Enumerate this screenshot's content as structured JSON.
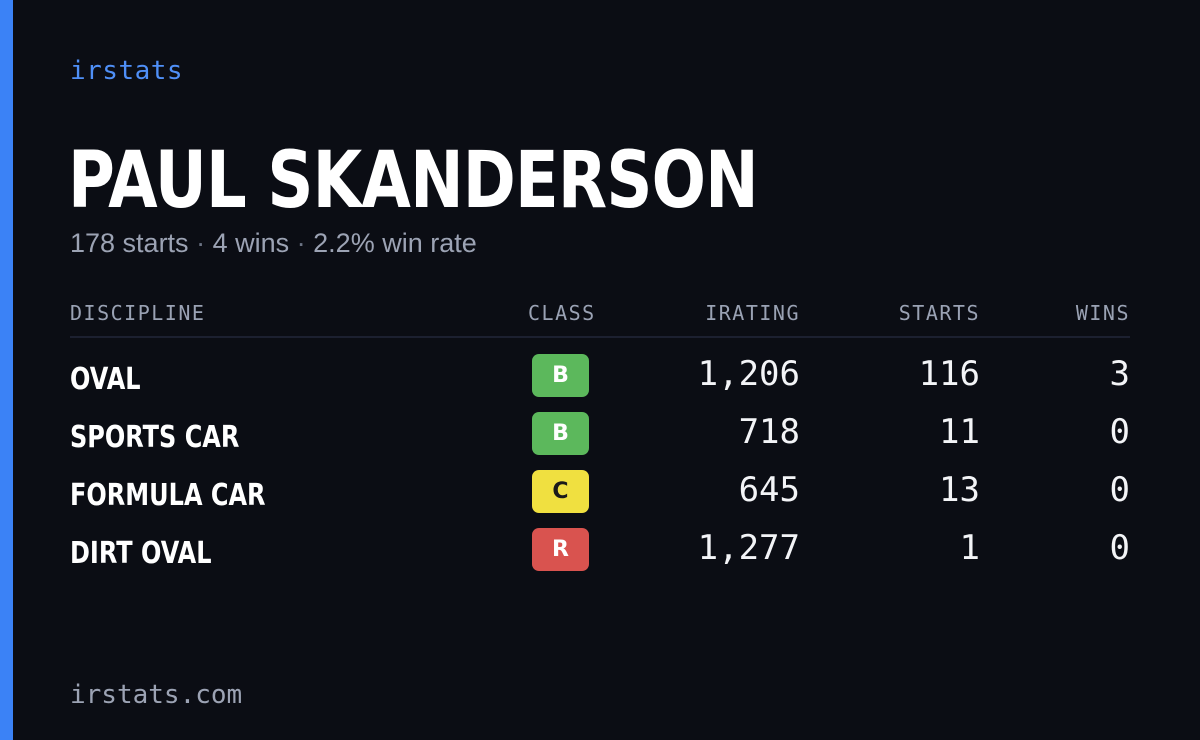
{
  "brand": "irstats",
  "player": {
    "name": "PAUL SKANDERSON",
    "starts_text": "178 starts",
    "wins_text": "4 wins",
    "win_rate_text": "2.2% win rate",
    "separator": "·"
  },
  "table": {
    "headers": {
      "discipline": "DISCIPLINE",
      "class": "CLASS",
      "irating": "IRATING",
      "starts": "STARTS",
      "wins": "WINS"
    },
    "rows": [
      {
        "discipline": "OVAL",
        "class": "B",
        "class_color": "#5cb85c",
        "class_text_color": "#ffffff",
        "irating": "1,206",
        "starts": "116",
        "wins": "3"
      },
      {
        "discipline": "SPORTS CAR",
        "class": "B",
        "class_color": "#5cb85c",
        "class_text_color": "#ffffff",
        "irating": "718",
        "starts": "11",
        "wins": "0"
      },
      {
        "discipline": "FORMULA CAR",
        "class": "C",
        "class_color": "#f0e040",
        "class_text_color": "#1a1a1a",
        "irating": "645",
        "starts": "13",
        "wins": "0"
      },
      {
        "discipline": "DIRT OVAL",
        "class": "R",
        "class_color": "#d9534f",
        "class_text_color": "#ffffff",
        "irating": "1,277",
        "starts": "1",
        "wins": "0"
      }
    ]
  },
  "footer": "irstats.com",
  "colors": {
    "background": "#0b0d14",
    "accent": "#3b82f6",
    "brand_text": "#4f8ff7",
    "muted_text": "#9ca3b4"
  }
}
